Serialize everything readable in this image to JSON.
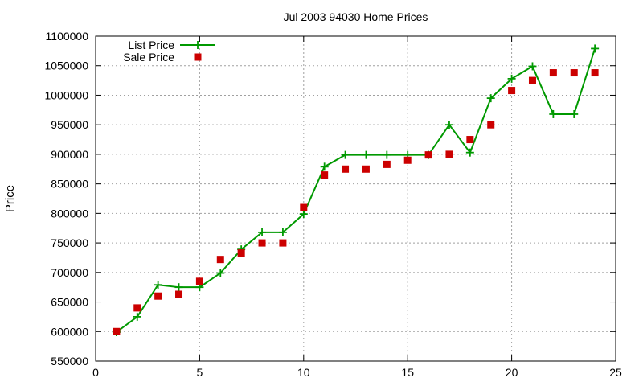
{
  "chart_data": {
    "type": "line",
    "title": "Jul 2003 94030 Home Prices",
    "xlabel": "",
    "ylabel": "Price",
    "xlim": [
      0,
      25
    ],
    "ylim": [
      550000,
      1100000
    ],
    "xticks": [
      0,
      5,
      10,
      15,
      20,
      25
    ],
    "yticks": [
      550000,
      600000,
      650000,
      700000,
      750000,
      800000,
      850000,
      900000,
      950000,
      1000000,
      1050000,
      1100000
    ],
    "grid": true,
    "legend_position": "top-left",
    "series": [
      {
        "name": "List Price",
        "style": "line-with-plus-markers",
        "color": "#009900",
        "x": [
          1,
          2,
          3,
          4,
          5,
          6,
          7,
          8,
          9,
          10,
          11,
          12,
          13,
          14,
          15,
          16,
          17,
          18,
          19,
          20,
          21,
          22,
          23,
          24
        ],
        "y": [
          599000,
          625000,
          679000,
          675000,
          675000,
          699000,
          739000,
          768000,
          768000,
          799000,
          879000,
          899000,
          899000,
          899000,
          899000,
          899000,
          950000,
          903000,
          995000,
          1028000,
          1049000,
          968000,
          968000,
          1079000
        ]
      },
      {
        "name": "Sale Price",
        "style": "square-markers",
        "color": "#cc0000",
        "x": [
          1,
          2,
          3,
          4,
          5,
          6,
          7,
          8,
          9,
          10,
          11,
          12,
          13,
          14,
          15,
          16,
          17,
          18,
          19,
          20,
          21,
          22,
          23,
          24
        ],
        "y": [
          600000,
          640000,
          660000,
          663000,
          685000,
          722000,
          733000,
          750000,
          750000,
          810000,
          865000,
          875000,
          875000,
          883000,
          890000,
          899000,
          900000,
          925000,
          950000,
          1008000,
          1025000,
          1038000,
          1038000,
          1038000
        ]
      }
    ]
  }
}
